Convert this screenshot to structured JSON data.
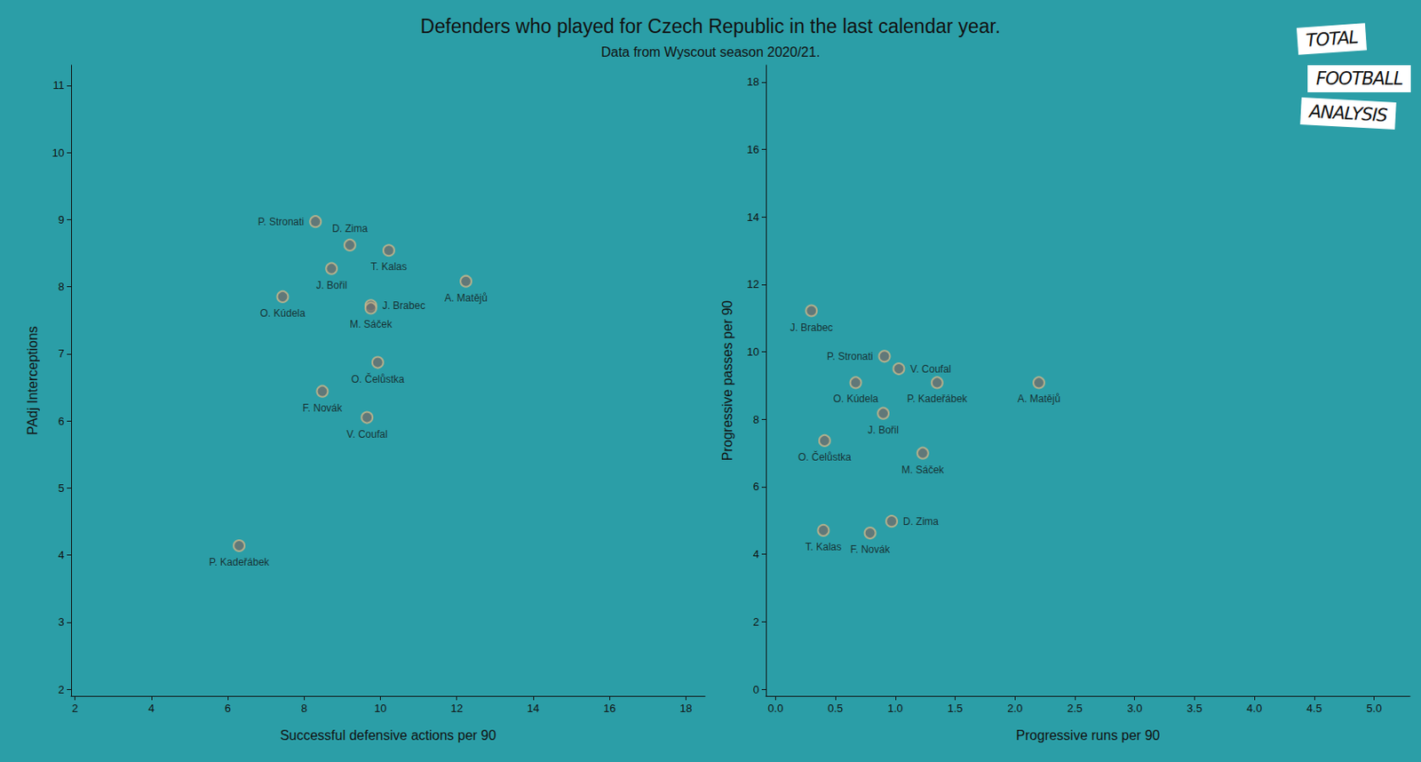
{
  "title": "Defenders who played for Czech Republic in the last calendar year.",
  "subtitle": "Data from Wyscout season 2020/21.",
  "logo": [
    "TOTAL",
    "FOOTBALL",
    "ANALYSIS"
  ],
  "chart_data": [
    {
      "type": "scatter",
      "xlabel": "Successful defensive actions per 90",
      "ylabel": "PAdj Interceptions",
      "point_labels": [
        "P. Stronati",
        "D. Zima",
        "T. Kalas",
        "J. Bořil",
        "A. Matějů",
        "O. Kúdela",
        "J. Brabec",
        "M. Sáček",
        "O. Čelůstka",
        "F. Novák",
        "V. Coufal",
        "P. Kadeřábek"
      ],
      "x": [
        8.3,
        9.2,
        10.22,
        8.72,
        12.24,
        7.44,
        9.75,
        9.75,
        9.93,
        8.48,
        9.65,
        6.3
      ],
      "y": [
        8.97,
        8.62,
        8.54,
        8.27,
        8.08,
        7.85,
        7.72,
        7.68,
        6.87,
        6.44,
        6.05,
        4.14
      ],
      "xlim": [
        1.9,
        18.5
      ],
      "ylim": [
        1.9,
        11.3
      ],
      "xticks": [
        2,
        4,
        6,
        8,
        10,
        12,
        14,
        16,
        18
      ],
      "yticks": [
        2,
        3,
        4,
        5,
        6,
        7,
        8,
        9,
        10,
        11
      ],
      "color": "#6e6e6e",
      "marker": "circle",
      "grid": false
    },
    {
      "type": "scatter",
      "xlabel": "Progressive runs per 90",
      "ylabel": "Progressive passes per 90",
      "point_labels": [
        "J. Brabec",
        "P. Stronati",
        "V. Coufal",
        "O. Kúdela",
        "P. Kadeřábek",
        "A. Matějů",
        "J. Bořil",
        "O. Čelůstka",
        "M. Sáček",
        "D. Zima",
        "T. Kalas",
        "F. Novák"
      ],
      "x": [
        0.3,
        0.91,
        1.03,
        0.67,
        1.35,
        2.2,
        0.9,
        0.41,
        1.23,
        0.97,
        0.4,
        0.79
      ],
      "y": [
        11.22,
        9.87,
        9.5,
        9.09,
        9.09,
        9.09,
        8.18,
        7.37,
        7.0,
        4.98,
        4.71,
        4.63
      ],
      "xlim": [
        -0.08,
        5.3
      ],
      "ylim": [
        -0.2,
        18.5
      ],
      "xticks": [
        {
          "value": 0,
          "label": "0.0"
        },
        0.5,
        {
          "value": 1,
          "label": "1.0"
        },
        1.5,
        {
          "value": 2,
          "label": "2.0"
        },
        2.5,
        {
          "value": 3,
          "label": "3.0"
        },
        3.5,
        {
          "value": 4,
          "label": "4.0"
        },
        4.5,
        {
          "value": 5,
          "label": "5.0"
        }
      ],
      "yticks": [
        0,
        2,
        4,
        6,
        8,
        10,
        12,
        14,
        16,
        18
      ],
      "color": "#6e6e6e",
      "marker": "circle",
      "grid": false
    }
  ]
}
